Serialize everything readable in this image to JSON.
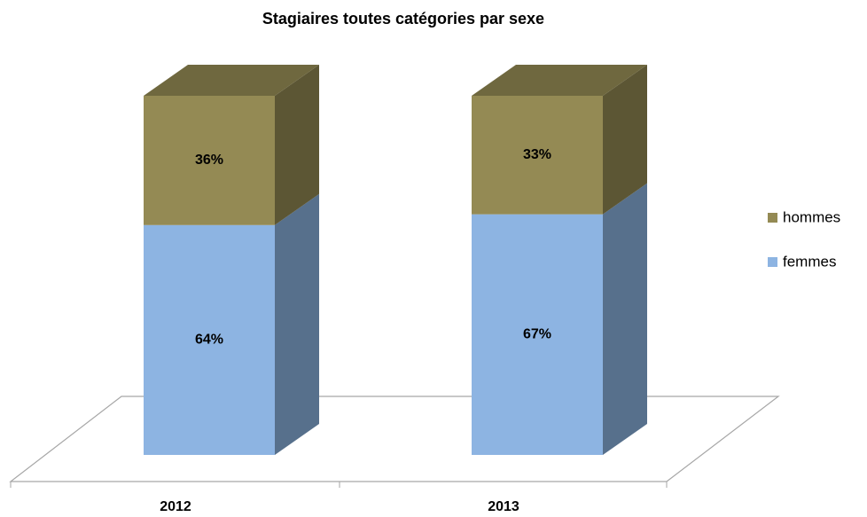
{
  "chart_data": {
    "type": "bar3d_stacked",
    "title": "Stagiaires toutes catégories par sexe",
    "categories": [
      "2012",
      "2013"
    ],
    "series": [
      {
        "name": "femmes",
        "color": "#8db4e2",
        "values": [
          64,
          67
        ],
        "value_labels": [
          "64%",
          "67%"
        ]
      },
      {
        "name": "hommes",
        "color": "#948a54",
        "values": [
          36,
          33
        ],
        "value_labels": [
          "36%",
          "33%"
        ]
      }
    ],
    "legend": "right"
  }
}
